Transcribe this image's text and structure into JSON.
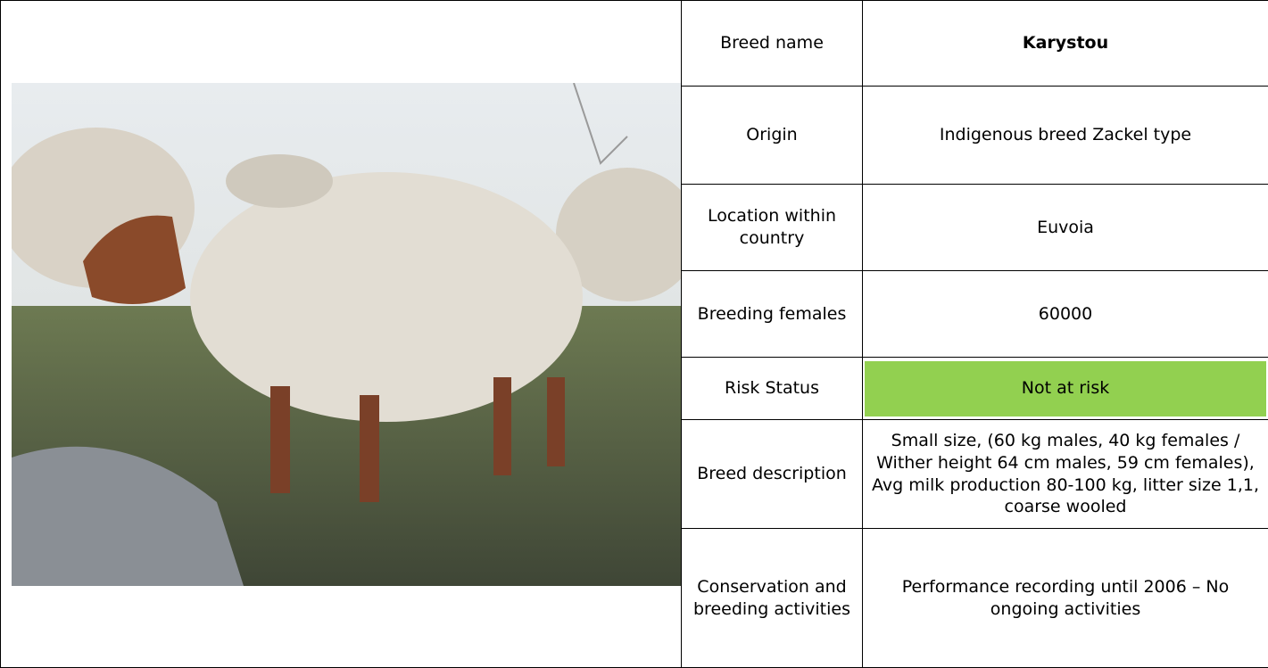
{
  "table": {
    "rows": [
      [
        "Breed name",
        "Karystou"
      ],
      [
        "Origin",
        "Indigenous breed Zackel type"
      ],
      [
        "Location within country",
        "Euvoia"
      ],
      [
        "Breeding females",
        "60000"
      ],
      [
        "Risk Status",
        "Not at risk"
      ],
      [
        "Breed description",
        "Small size, (60 kg males, 40 kg females / Wither height 64 cm males, 59 cm females), Avg milk production 80-100 kg, litter size 1,1, coarse wooled"
      ],
      [
        "Conservation and breeding activities",
        "Performance recording until 2006 – No ongoing activities"
      ]
    ]
  }
}
